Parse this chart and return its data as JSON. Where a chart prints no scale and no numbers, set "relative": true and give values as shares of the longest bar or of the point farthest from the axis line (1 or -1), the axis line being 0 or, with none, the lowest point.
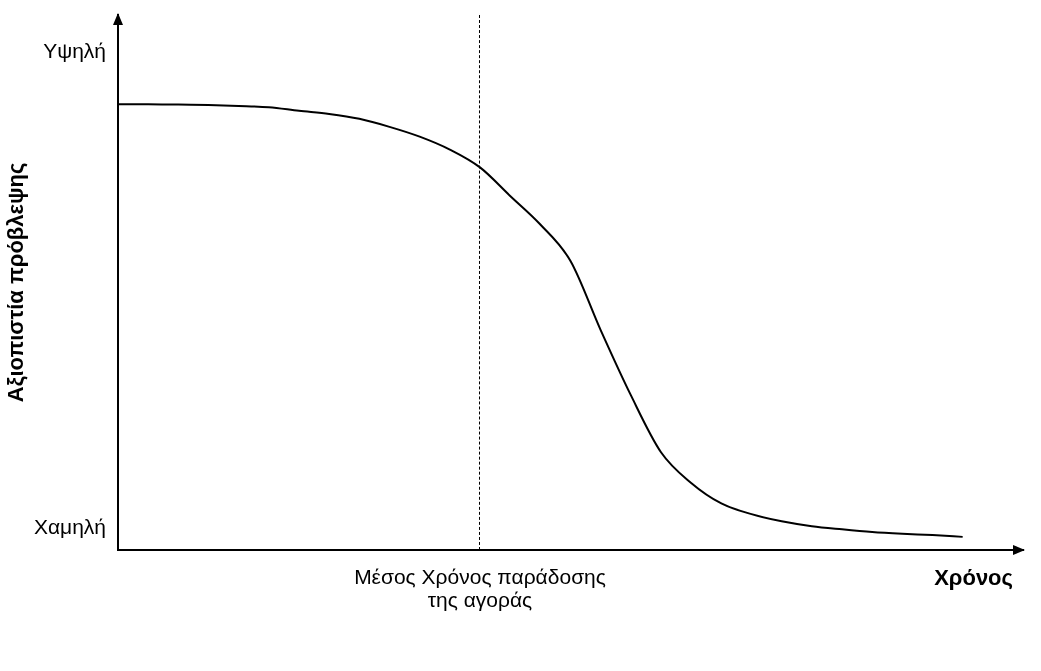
{
  "chart_data": {
    "type": "line",
    "xlabel": "Χρόνος",
    "ylabel": "Αξιοπιστία πρόβλεψης",
    "relative": true,
    "categories": [
      null,
      null,
      null,
      null,
      null,
      null,
      null,
      null,
      null,
      null,
      null,
      null,
      null,
      null,
      null,
      null,
      null,
      null,
      null,
      null,
      null,
      null,
      null,
      null,
      null,
      null,
      null,
      null,
      null,
      null,
      null
    ],
    "series": [
      {
        "color": "#000000",
        "values": [
          1.0,
          1.0,
          0.999,
          0.998,
          0.996,
          0.993,
          0.985,
          0.978,
          0.967,
          0.949,
          0.927,
          0.898,
          0.858,
          0.794,
          0.73,
          0.648,
          0.493,
          0.347,
          0.219,
          0.15,
          0.104,
          0.08,
          0.064,
          0.053,
          0.046,
          0.04,
          0.036,
          0.033,
          0.029,
          null,
          null
        ]
      }
    ],
    "annotations": [
      "Υψηλή",
      "Χαμηλή",
      "Μέσος Χρόνος παράδοσης της αγοράς"
    ],
    "grid": false,
    "legend": false,
    "marker": "none",
    "line_style": "solid"
  }
}
